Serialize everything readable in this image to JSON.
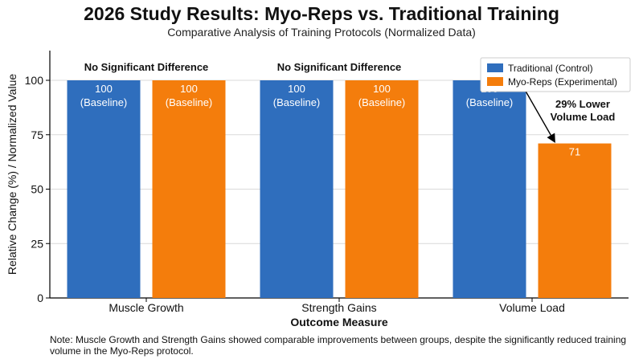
{
  "chart_data": {
    "type": "bar",
    "title": "2026 Study Results: Myo-Reps vs. Traditional Training",
    "subtitle": "Comparative Analysis of Training Protocols (Normalized Data)",
    "xlabel": "Outcome Measure",
    "ylabel": "Relative Change (%) / Normalized Value",
    "ylim": [
      0,
      100
    ],
    "yticks": [
      0,
      25,
      50,
      75,
      100
    ],
    "grid": true,
    "legend_position": "top-right",
    "categories": [
      "Muscle Growth",
      "Strength Gains",
      "Volume Load"
    ],
    "series": [
      {
        "name": "Traditional (Control)",
        "color": "#2f6ebd",
        "values": [
          100,
          100,
          100
        ],
        "data_labels": [
          [
            "100",
            "(Baseline)"
          ],
          [
            "100",
            "(Baseline)"
          ],
          [
            "100",
            "(Baseline)"
          ]
        ]
      },
      {
        "name": "Myo-Reps (Experimental)",
        "color": "#f47d0c",
        "values": [
          100,
          100,
          71
        ],
        "data_labels": [
          [
            "100",
            "(Baseline)"
          ],
          [
            "100",
            "(Baseline)"
          ],
          [
            "71"
          ]
        ]
      }
    ],
    "annotations": [
      {
        "category_index": 0,
        "lines": [
          "No Significant Difference"
        ]
      },
      {
        "category_index": 1,
        "lines": [
          "No Significant Difference"
        ]
      },
      {
        "category_index": 2,
        "lines": [
          "29% Lower",
          "Volume Load"
        ],
        "arrow": true
      }
    ]
  },
  "note": "Note: Muscle Growth and Strength Gains showed comparable improvements between groups, despite the significantly reduced training volume in the Myo-Reps protocol."
}
